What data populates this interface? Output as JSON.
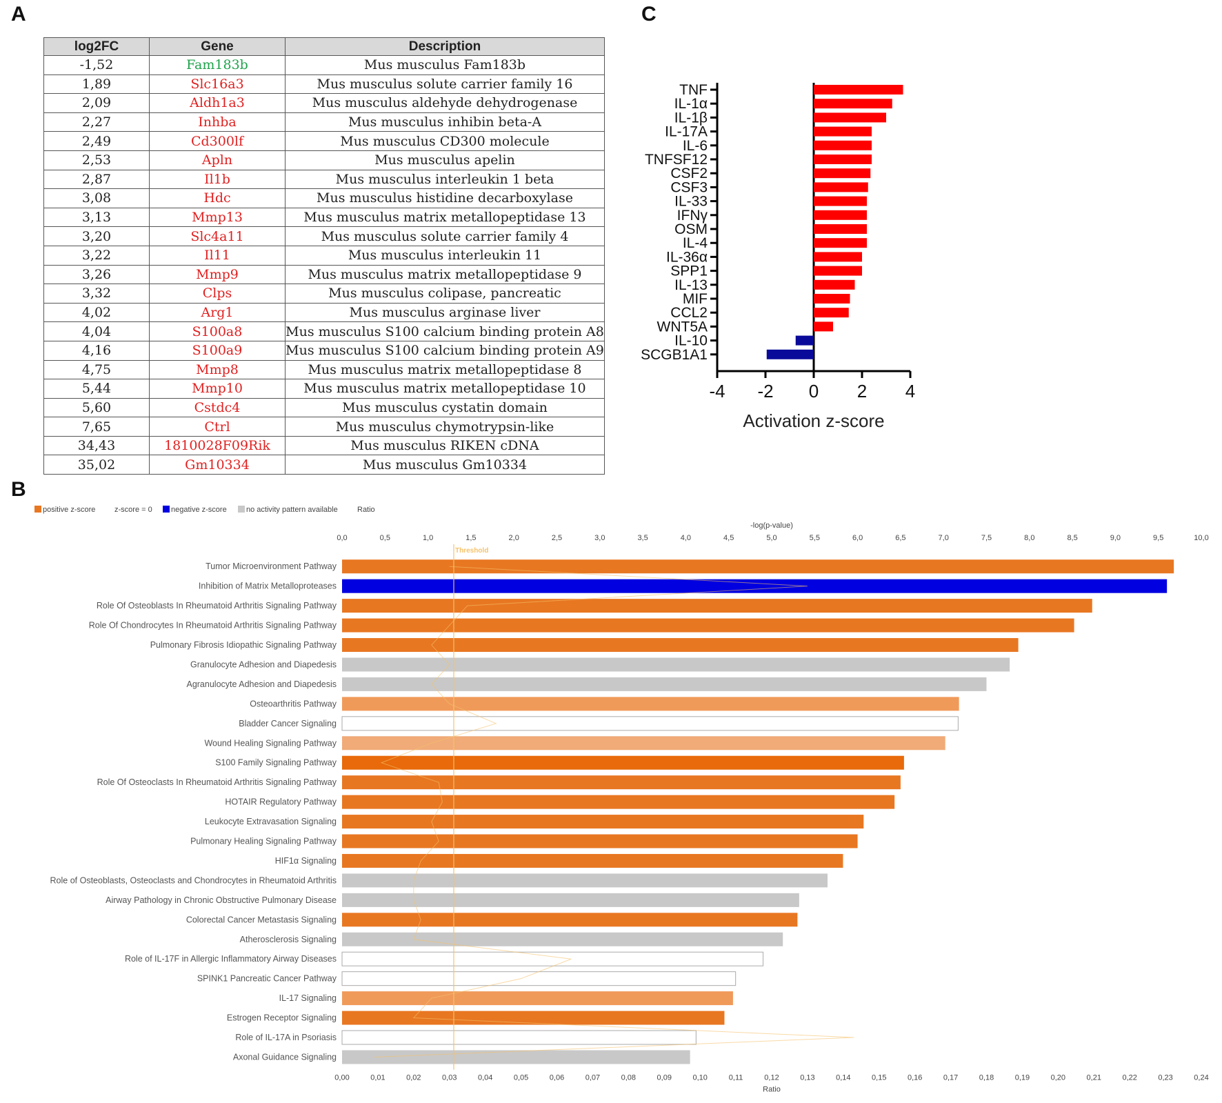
{
  "panels": {
    "a": "A",
    "b": "B",
    "c": "C"
  },
  "panelA": {
    "headers": [
      "log2FC",
      "Gene",
      "Description"
    ],
    "colors": {
      "down": "#1ea34a",
      "up": "#e02020"
    },
    "rows": [
      {
        "fc": "-1,52",
        "gene": "Fam183b",
        "desc": "Mus musculus Fam183b",
        "dir": "down"
      },
      {
        "fc": "1,89",
        "gene": "Slc16a3",
        "desc": "Mus musculus solute carrier family 16",
        "dir": "up"
      },
      {
        "fc": "2,09",
        "gene": "Aldh1a3",
        "desc": "Mus musculus aldehyde dehydrogenase",
        "dir": "up"
      },
      {
        "fc": "2,27",
        "gene": "Inhba",
        "desc": "Mus musculus inhibin beta-A",
        "dir": "up"
      },
      {
        "fc": "2,49",
        "gene": "Cd300lf",
        "desc": "Mus musculus CD300 molecule",
        "dir": "up"
      },
      {
        "fc": "2,53",
        "gene": "Apln",
        "desc": "Mus musculus apelin",
        "dir": "up"
      },
      {
        "fc": "2,87",
        "gene": "Il1b",
        "desc": "Mus musculus interleukin 1 beta",
        "dir": "up"
      },
      {
        "fc": "3,08",
        "gene": "Hdc",
        "desc": "Mus musculus histidine decarboxylase",
        "dir": "up"
      },
      {
        "fc": "3,13",
        "gene": "Mmp13",
        "desc": "Mus musculus matrix metallopeptidase 13",
        "dir": "up"
      },
      {
        "fc": "3,20",
        "gene": "Slc4a11",
        "desc": "Mus musculus solute carrier family 4",
        "dir": "up"
      },
      {
        "fc": "3,22",
        "gene": "Il11",
        "desc": "Mus musculus interleukin 11",
        "dir": "up"
      },
      {
        "fc": "3,26",
        "gene": "Mmp9",
        "desc": "Mus musculus matrix metallopeptidase 9",
        "dir": "up"
      },
      {
        "fc": "3,32",
        "gene": "Clps",
        "desc": "Mus musculus colipase, pancreatic",
        "dir": "up"
      },
      {
        "fc": "4,02",
        "gene": "Arg1",
        "desc": "Mus musculus arginase liver",
        "dir": "up"
      },
      {
        "fc": "4,04",
        "gene": "S100a8",
        "desc": "Mus musculus S100 calcium binding protein A8",
        "dir": "up"
      },
      {
        "fc": "4,16",
        "gene": "S100a9",
        "desc": "Mus musculus S100 calcium binding protein A9",
        "dir": "up"
      },
      {
        "fc": "4,75",
        "gene": "Mmp8",
        "desc": "Mus musculus matrix metallopeptidase 8",
        "dir": "up"
      },
      {
        "fc": "5,44",
        "gene": "Mmp10",
        "desc": "Mus musculus matrix metallopeptidase 10",
        "dir": "up"
      },
      {
        "fc": "5,60",
        "gene": "Cstdc4",
        "desc": "Mus musculus cystatin domain",
        "dir": "up"
      },
      {
        "fc": "7,65",
        "gene": "Ctrl",
        "desc": "Mus musculus chymotrypsin-like",
        "dir": "up"
      },
      {
        "fc": "34,43",
        "gene": "1810028F09Rik",
        "desc": "Mus musculus RIKEN cDNA",
        "dir": "up"
      },
      {
        "fc": "35,02",
        "gene": "Gm10334",
        "desc": "Mus musculus Gm10334",
        "dir": "up"
      }
    ]
  },
  "chart_data": [
    {
      "type": "bar",
      "orientation": "horizontal",
      "panel": "C",
      "xlabel": "Activation z-score",
      "xlim": [
        -4,
        4
      ],
      "xticks": [
        "-4",
        "-2",
        "0",
        "2",
        "4"
      ],
      "colors": {
        "positive": "#ff0000",
        "negative": "#0a0a9a"
      },
      "categories": [
        "TNF",
        "IL-1α",
        "IL-1β",
        "IL-17A",
        "IL-6",
        "TNFSF12",
        "CSF2",
        "CSF3",
        "IL-33",
        "IFNγ",
        "OSM",
        "IL-4",
        "IL-36α",
        "SPP1",
        "IL-13",
        "MIF",
        "CCL2",
        "WNT5A",
        "IL-10",
        "SCGB1A1"
      ],
      "values": [
        3.7,
        3.25,
        3.0,
        2.4,
        2.4,
        2.4,
        2.35,
        2.25,
        2.2,
        2.2,
        2.2,
        2.2,
        2.0,
        2.0,
        1.7,
        1.5,
        1.45,
        0.8,
        -0.75,
        -1.95
      ]
    },
    {
      "type": "bar",
      "orientation": "horizontal",
      "panel": "B",
      "title": "-log(p-value)",
      "x2label": "Ratio",
      "legend": [
        "positive z-score",
        "z-score = 0",
        "negative z-score",
        "no activity pattern available",
        "Ratio"
      ],
      "threshold_label": "Threshold",
      "threshold": 1.3,
      "xlim": [
        0,
        10
      ],
      "x2lim": [
        0,
        0.24
      ],
      "xticks": [
        "0,0",
        "0,5",
        "1,0",
        "1,5",
        "2,0",
        "2,5",
        "3,0",
        "3,5",
        "4,0",
        "4,5",
        "5,0",
        "5,5",
        "6,0",
        "6,5",
        "7,0",
        "7,5",
        "8,0",
        "8,5",
        "9,0",
        "9,5",
        "10,0"
      ],
      "x2ticks": [
        "0,00",
        "0,01",
        "0,02",
        "0,03",
        "0,04",
        "0,05",
        "0,06",
        "0,07",
        "0,08",
        "0,09",
        "0,10",
        "0,11",
        "0,12",
        "0,13",
        "0,14",
        "0,15",
        "0,16",
        "0,17",
        "0,18",
        "0,19",
        "0,20",
        "0,21",
        "0,22",
        "0,23",
        "0,24"
      ],
      "colors": {
        "positive": "#e87722",
        "positive_light": "#f09a5a",
        "positive_lighter": "#f0ab78",
        "positive_dark": "#e86a0a",
        "negative": "#0000e0",
        "none": "#c8c8c8",
        "zero": "#ffffff",
        "threshold": "#f5c26b"
      },
      "categories": [
        "Tumor Microenvironment Pathway",
        "Inhibition of Matrix Metalloproteases",
        "Role Of Osteoblasts In Rheumatoid Arthritis Signaling Pathway",
        "Role Of Chondrocytes In Rheumatoid Arthritis Signaling Pathway",
        "Pulmonary Fibrosis Idiopathic Signaling Pathway",
        "Granulocyte Adhesion and Diapedesis",
        "Agranulocyte Adhesion and Diapedesis",
        "Osteoarthritis Pathway",
        "Bladder Cancer Signaling",
        "Wound Healing Signaling Pathway",
        "S100 Family Signaling Pathway",
        "Role Of Osteoclasts In Rheumatoid Arthritis Signaling Pathway",
        "HOTAIR Regulatory Pathway",
        "Leukocyte Extravasation Signaling",
        "Pulmonary Healing Signaling Pathway",
        "HIF1α Signaling",
        "Role of Osteoblasts, Osteoclasts and Chondrocytes in Rheumatoid Arthritis",
        "Airway Pathology in Chronic Obstructive Pulmonary Disease",
        "Colorectal Cancer Metastasis Signaling",
        "Atherosclerosis Signaling",
        "Role of IL-17F in Allergic Inflammatory Airway Diseases",
        "SPINK1 Pancreatic Cancer Pathway",
        "IL-17 Signaling",
        "Estrogen Receptor Signaling",
        "Role of IL-17A in Psoriasis",
        "Axonal Guidance Signaling"
      ],
      "values": [
        9.68,
        9.6,
        8.73,
        8.52,
        7.87,
        7.77,
        7.5,
        7.18,
        7.17,
        7.02,
        6.54,
        6.5,
        6.43,
        6.07,
        6.0,
        5.83,
        5.65,
        5.32,
        5.3,
        5.13,
        4.9,
        4.58,
        4.55,
        4.45,
        4.12,
        4.05
      ],
      "zscore_class": [
        "positive",
        "negative",
        "positive",
        "positive",
        "positive",
        "none",
        "none",
        "positive_light",
        "zero",
        "positive_lighter",
        "positive_dark",
        "positive",
        "positive",
        "positive",
        "positive",
        "positive",
        "none",
        "none",
        "positive",
        "none",
        "zero",
        "zero",
        "positive_light",
        "positive",
        "zero",
        "none"
      ],
      "ratio": [
        0.03,
        0.13,
        0.035,
        0.03,
        0.025,
        0.03,
        0.025,
        0.03,
        0.043,
        0.025,
        0.011,
        0.027,
        0.028,
        0.025,
        0.027,
        0.022,
        0.02,
        0.02,
        0.022,
        0.02,
        0.064,
        0.05,
        0.025,
        0.02,
        0.143,
        0.009
      ]
    }
  ]
}
